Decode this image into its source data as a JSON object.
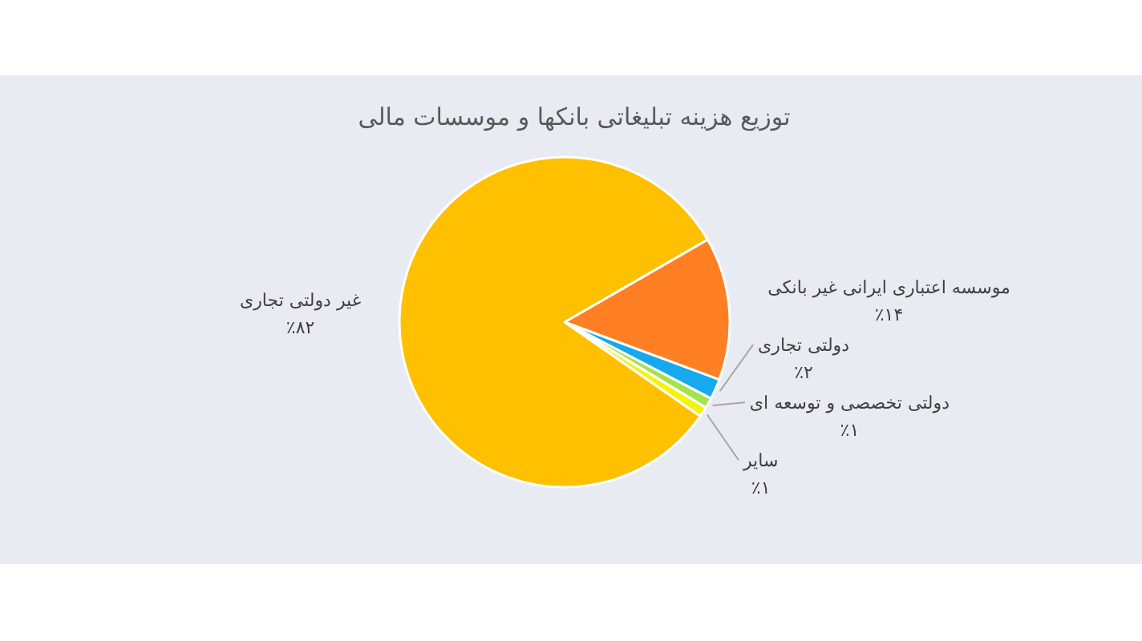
{
  "chart_data": {
    "type": "pie",
    "title": "توزیع هزینه تبلیغاتی بانکها و موسسات مالی",
    "categories": [
      "موسسه اعتباری ایرانی غیر بانکی",
      "دولتی تجاری",
      "دولتی تخصصی و توسعه ای",
      "سایر",
      "غیر دولتی تجاری"
    ],
    "values": [
      14,
      2,
      1,
      1,
      82
    ],
    "colors": [
      "#ff7f22",
      "#17a9ee",
      "#a3e34b",
      "#f4f40a",
      "#ffc000"
    ],
    "value_labels": [
      "٪۱۴",
      "٪۲",
      "٪۱",
      "٪۱",
      "٪۸۲"
    ]
  }
}
